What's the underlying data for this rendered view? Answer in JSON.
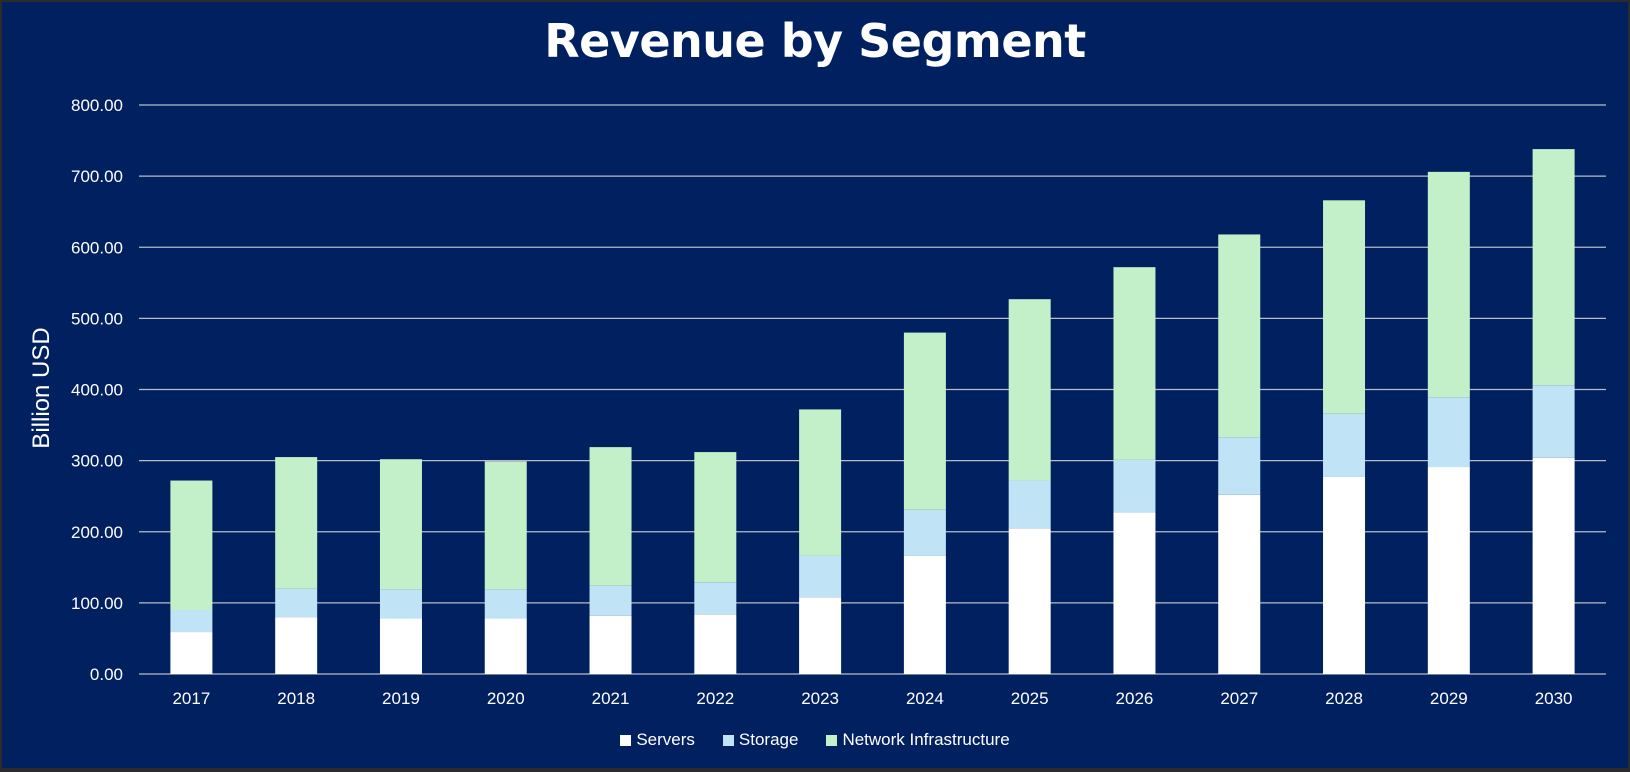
{
  "chart_data": {
    "type": "bar",
    "stacked": true,
    "title": "Revenue by Segment",
    "xlabel": "",
    "ylabel": "Billion USD",
    "ylim": [
      0,
      800
    ],
    "yticks": [
      "0.00",
      "100.00",
      "200.00",
      "300.00",
      "400.00",
      "500.00",
      "600.00",
      "700.00",
      "800.00"
    ],
    "ytick_values": [
      0,
      100,
      200,
      300,
      400,
      500,
      600,
      700,
      800
    ],
    "grid": true,
    "legend_position": "bottom",
    "categories": [
      "2017",
      "2018",
      "2019",
      "2020",
      "2021",
      "2022",
      "2023",
      "2024",
      "2025",
      "2026",
      "2027",
      "2028",
      "2029",
      "2030"
    ],
    "series": [
      {
        "name": "Servers",
        "color": "#FFFFFF",
        "values": [
          59,
          80,
          78,
          78,
          82,
          84,
          108,
          166,
          205,
          227,
          252,
          277,
          291,
          304
        ]
      },
      {
        "name": "Storage",
        "color": "#C0E4F6",
        "values": [
          31,
          40,
          41,
          41,
          42,
          45,
          58,
          65,
          67,
          74,
          81,
          89,
          98,
          102
        ]
      },
      {
        "name": "Network Infrastructure",
        "color": "#C3F0C8",
        "values": [
          182,
          185,
          183,
          180,
          195,
          183,
          206,
          249,
          255,
          271,
          285,
          300,
          317,
          332
        ]
      }
    ]
  },
  "colors": {
    "background": "#002060",
    "grid": "#B7BCC8",
    "text": "#FFFFFF"
  }
}
